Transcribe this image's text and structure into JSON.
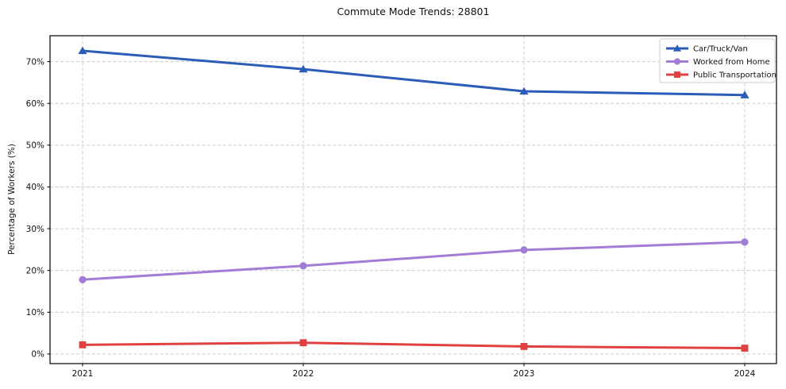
{
  "title": "Commute Mode Trends: 28801",
  "chart_data": {
    "type": "line",
    "title": "Commute Mode Trends: 28801",
    "xlabel": "",
    "ylabel": "Percentage of Workers (%)",
    "x": [
      "2021",
      "2022",
      "2023",
      "2024"
    ],
    "series": [
      {
        "name": "Car/Truck/Van",
        "color": "#2b5db8",
        "marker": "triangle",
        "values": [
          72.6,
          68.2,
          62.9,
          62.0
        ]
      },
      {
        "name": "Worked from Home",
        "color": "#a37cd6",
        "marker": "circle",
        "values": [
          17.8,
          21.1,
          24.9,
          26.8
        ]
      },
      {
        "name": "Public Transportation",
        "color": "#e04140",
        "marker": "square",
        "values": [
          2.2,
          2.7,
          1.8,
          1.4
        ]
      }
    ],
    "yticks": [
      0,
      10,
      20,
      30,
      40,
      50,
      60,
      70
    ],
    "ytick_suffix": "%",
    "ylim": [
      -2.3,
      76.2
    ],
    "grid": true,
    "grid_color": "#cccccc",
    "legend_position": "upper right"
  }
}
